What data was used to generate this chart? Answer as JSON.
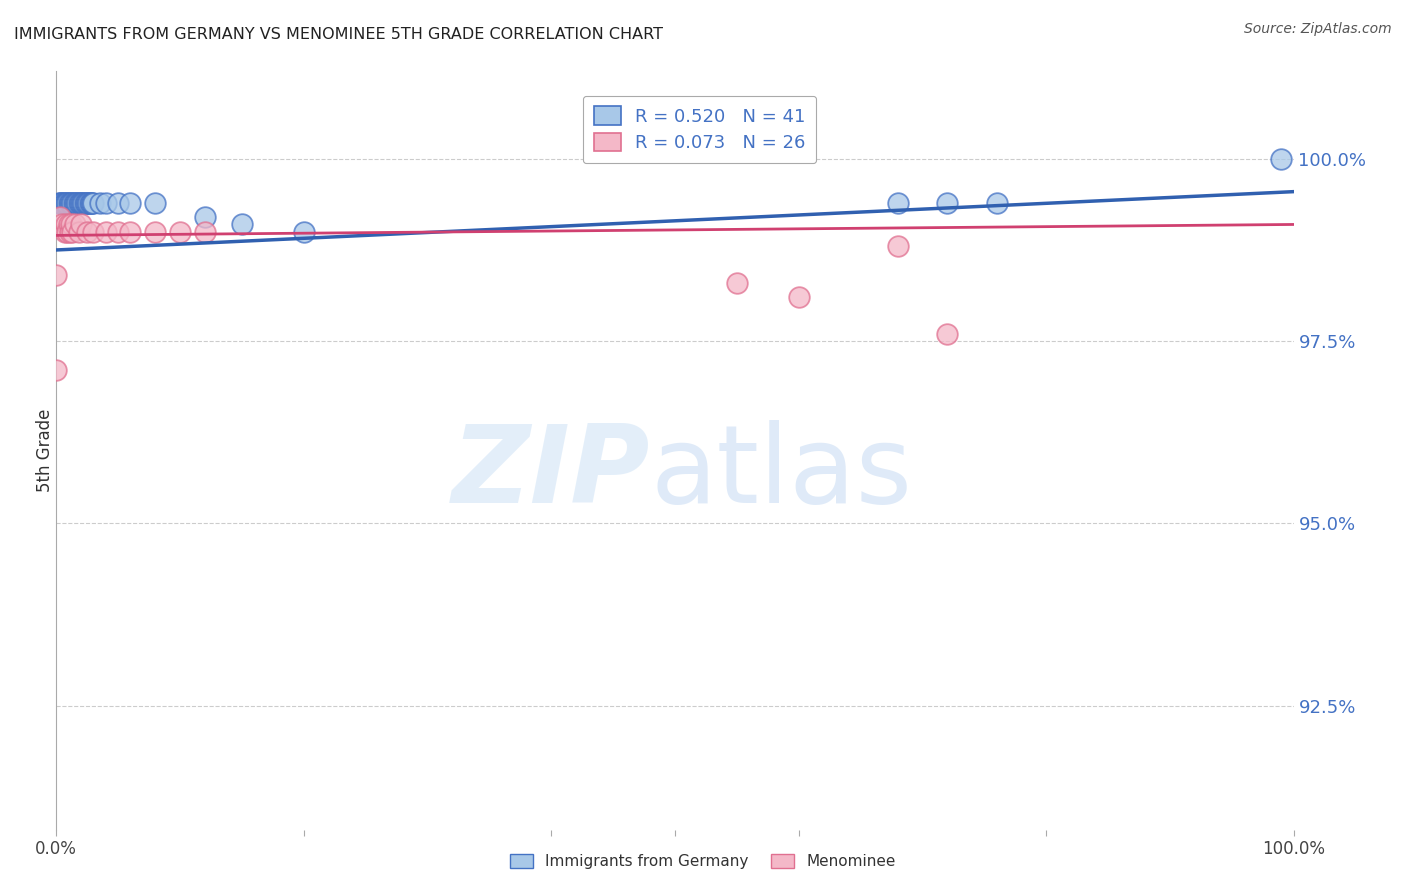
{
  "title": "IMMIGRANTS FROM GERMANY VS MENOMINEE 5TH GRADE CORRELATION CHART",
  "source": "Source: ZipAtlas.com",
  "ylabel": "5th Grade",
  "ytick_labels": [
    "100.0%",
    "97.5%",
    "95.0%",
    "92.5%"
  ],
  "ytick_values": [
    1.0,
    0.975,
    0.95,
    0.925
  ],
  "xlim": [
    0.0,
    1.0
  ],
  "ylim": [
    0.908,
    1.012
  ],
  "legend_blue_r": "R = 0.520",
  "legend_blue_n": "N = 41",
  "legend_pink_r": "R = 0.073",
  "legend_pink_n": "N = 26",
  "blue_color": "#a8c8e8",
  "pink_color": "#f4b8c8",
  "blue_edge_color": "#4472c4",
  "pink_edge_color": "#e07090",
  "blue_line_color": "#3060b0",
  "pink_line_color": "#d04070",
  "blue_scatter_x": [
    0.002,
    0.003,
    0.004,
    0.005,
    0.006,
    0.007,
    0.008,
    0.009,
    0.01,
    0.011,
    0.012,
    0.013,
    0.014,
    0.015,
    0.016,
    0.017,
    0.018,
    0.019,
    0.02,
    0.021,
    0.022,
    0.023,
    0.024,
    0.025,
    0.026,
    0.027,
    0.028,
    0.029,
    0.03,
    0.035,
    0.04,
    0.05,
    0.06,
    0.08,
    0.12,
    0.15,
    0.2,
    0.68,
    0.72,
    0.76,
    0.99
  ],
  "blue_scatter_y": [
    0.994,
    0.994,
    0.994,
    0.994,
    0.994,
    0.994,
    0.994,
    0.994,
    0.994,
    0.994,
    0.994,
    0.994,
    0.994,
    0.994,
    0.994,
    0.994,
    0.994,
    0.994,
    0.994,
    0.994,
    0.994,
    0.994,
    0.994,
    0.994,
    0.994,
    0.994,
    0.994,
    0.994,
    0.994,
    0.994,
    0.994,
    0.994,
    0.994,
    0.994,
    0.992,
    0.991,
    0.99,
    0.994,
    0.994,
    0.994,
    1.0
  ],
  "pink_scatter_x": [
    0.003,
    0.005,
    0.007,
    0.008,
    0.009,
    0.01,
    0.011,
    0.012,
    0.013,
    0.015,
    0.018,
    0.02,
    0.025,
    0.03,
    0.04,
    0.05,
    0.06,
    0.08,
    0.1,
    0.12,
    0.55,
    0.6,
    0.68,
    0.72,
    0.0,
    0.0
  ],
  "pink_scatter_y": [
    0.992,
    0.991,
    0.99,
    0.991,
    0.99,
    0.991,
    0.99,
    0.991,
    0.99,
    0.991,
    0.99,
    0.991,
    0.99,
    0.99,
    0.99,
    0.99,
    0.99,
    0.99,
    0.99,
    0.99,
    0.983,
    0.981,
    0.988,
    0.976,
    0.984,
    0.971
  ],
  "blue_trendline_x": [
    0.0,
    1.0
  ],
  "blue_trendline_y": [
    0.9875,
    0.9955
  ],
  "pink_trendline_x": [
    0.0,
    1.0
  ],
  "pink_trendline_y": [
    0.9895,
    0.991
  ],
  "grid_color": "#cccccc",
  "background_color": "#ffffff",
  "ytick_color": "#4472c4",
  "legend_text_color": "#4472c4"
}
